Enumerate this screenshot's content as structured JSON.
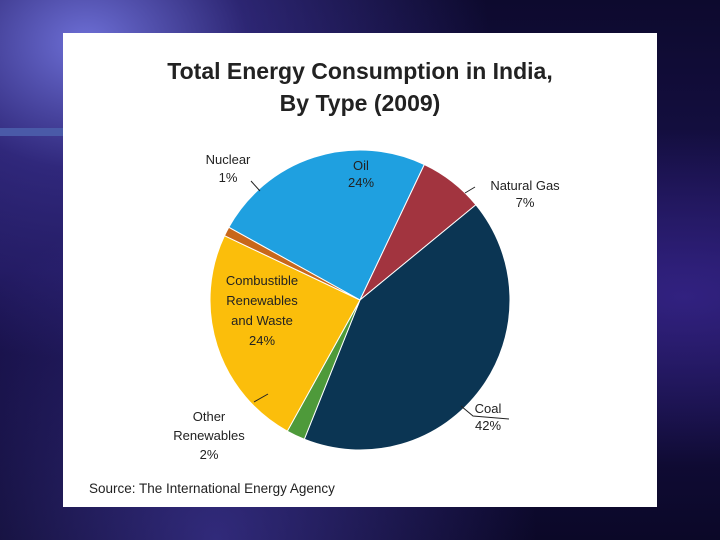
{
  "chart_data": {
    "type": "pie",
    "title": [
      "Total Energy Consumption in India,",
      "By Type (2009)"
    ],
    "slices": [
      {
        "name": "Oil",
        "value": 24,
        "label": [
          "Oil",
          "24%"
        ],
        "color": "#1fa0e0"
      },
      {
        "name": "Natural Gas",
        "value": 7,
        "label": [
          "Natural Gas",
          "7%"
        ],
        "color": "#a2343f"
      },
      {
        "name": "Coal",
        "value": 42,
        "label": [
          "Coal",
          "42%"
        ],
        "color": "#0b3553"
      },
      {
        "name": "Other Renewables",
        "value": 2,
        "label": [
          "Other",
          "Renewables",
          "2%"
        ],
        "color": "#4e9a3a"
      },
      {
        "name": "Combustible Renewables and Waste",
        "value": 24,
        "label": [
          "Combustible",
          "Renewables",
          "and Waste",
          "24%"
        ],
        "color": "#fbbe0b"
      },
      {
        "name": "Nuclear",
        "value": 1,
        "label": [
          "Nuclear",
          "1%"
        ],
        "color": "#c8671b"
      }
    ],
    "source": "Source: The International Energy Agency"
  }
}
